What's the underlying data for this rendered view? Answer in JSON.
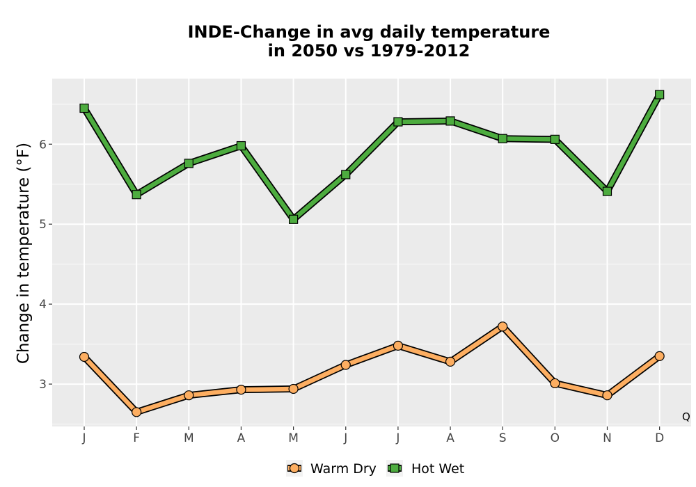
{
  "chart_data": {
    "type": "line",
    "title_lines": [
      "INDE-Change in avg daily temperature",
      "in 2050 vs 1979-2012"
    ],
    "xlabel": "",
    "ylabel": "Change in temperature (°F)",
    "categories": [
      "J",
      "F",
      "M",
      "A",
      "M",
      "J",
      "J",
      "A",
      "S",
      "O",
      "N",
      "D"
    ],
    "ylim": [
      2.47,
      6.82
    ],
    "yticks": [
      3,
      4,
      5,
      6
    ],
    "grid": true,
    "legend_position": "bottom",
    "annotation": "Q",
    "series": [
      {
        "name": "Warm Dry",
        "marker": "circle",
        "color": "#FDAE61",
        "values": [
          3.34,
          2.65,
          2.86,
          2.93,
          2.94,
          3.24,
          3.48,
          3.28,
          3.72,
          3.01,
          2.86,
          3.35
        ]
      },
      {
        "name": "Hot Wet",
        "marker": "square",
        "color": "#4DAC3F",
        "values": [
          6.45,
          5.37,
          5.76,
          5.98,
          5.06,
          5.62,
          6.28,
          6.29,
          6.07,
          6.06,
          5.41,
          6.62
        ]
      }
    ]
  }
}
